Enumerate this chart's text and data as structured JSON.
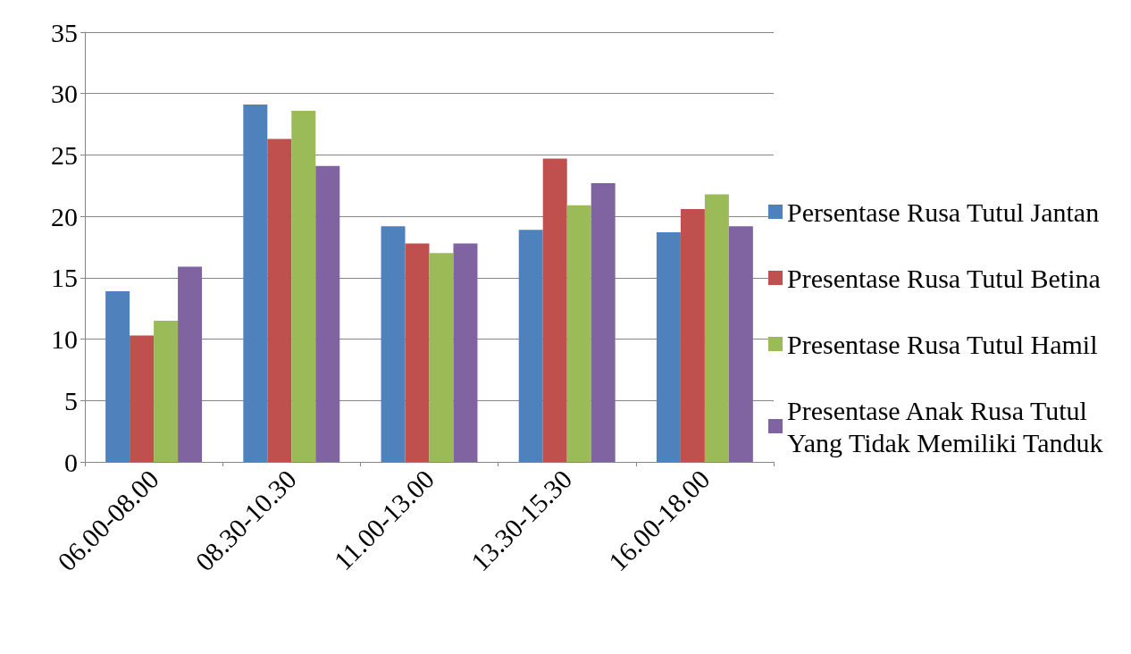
{
  "chart_data": {
    "type": "bar",
    "categories": [
      "06.00-08.00",
      "08.30-10.30",
      "11.00-13.00",
      "13.30-15.30",
      "16.00-18.00"
    ],
    "series": [
      {
        "name": "Persentase Rusa Tutul Jantan",
        "color": "#4f81bd",
        "values": [
          13.9,
          29.1,
          19.2,
          18.9,
          18.7
        ]
      },
      {
        "name": "Presentase Rusa Tutul Betina",
        "color": "#c0504d",
        "values": [
          10.3,
          26.3,
          17.8,
          24.7,
          20.6
        ]
      },
      {
        "name": "Presentase Rusa Tutul Hamil",
        "color": "#9bbb59",
        "values": [
          11.5,
          28.6,
          17.0,
          20.9,
          21.8
        ]
      },
      {
        "name": "Presentase Anak Rusa Tutul Yang Tidak Memiliki Tanduk",
        "color": "#8064a2",
        "values": [
          15.9,
          24.1,
          17.8,
          22.7,
          19.2
        ]
      }
    ],
    "ylim": [
      0,
      35
    ],
    "yticks": [
      0,
      5,
      10,
      15,
      20,
      25,
      30,
      35
    ],
    "grid": "y",
    "legend": "right"
  }
}
